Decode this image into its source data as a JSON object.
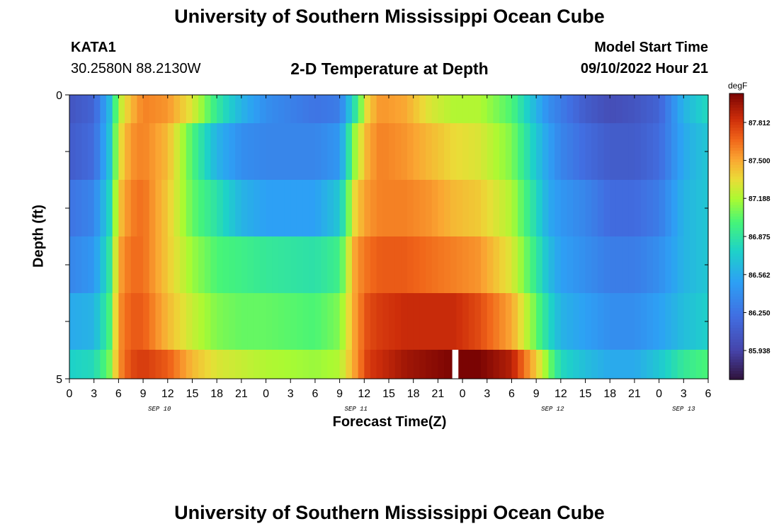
{
  "page": {
    "title": "University of Southern Mississippi Ocean Cube",
    "footer_title": "University of Southern Mississippi Ocean Cube"
  },
  "station": {
    "id": "KATA1",
    "coords": "30.2580N  88.2130W"
  },
  "model": {
    "start_label": "Model Start Time",
    "start_value": "09/10/2022 Hour 21"
  },
  "chart_data": {
    "type": "heatmap",
    "title": "2-D Temperature at Depth",
    "xlabel": "Forecast Time(Z)",
    "ylabel": "Depth (ft)",
    "units": "degF",
    "x_range_hours": [
      0,
      78
    ],
    "y_range_ft": [
      0,
      5
    ],
    "y_ticks": [
      "0",
      "5"
    ],
    "x_tick_labels": [
      "0",
      "3",
      "6",
      "9",
      "12",
      "15",
      "18",
      "21",
      "0",
      "3",
      "6",
      "9",
      "12",
      "15",
      "18",
      "21",
      "0",
      "3",
      "6",
      "9",
      "12",
      "15",
      "18",
      "21",
      "0",
      "3",
      "6"
    ],
    "date_labels": [
      {
        "text": "SEP 10",
        "hour": 11
      },
      {
        "text": "SEP 11",
        "hour": 35
      },
      {
        "text": "SEP 12",
        "hour": 59
      },
      {
        "text": "SEP 13",
        "hour": 75
      }
    ],
    "colorbar": {
      "min": 85.7,
      "max": 88.05,
      "labels": [
        "87.812",
        "87.500",
        "87.188",
        "86.875",
        "86.562",
        "86.250",
        "85.938"
      ],
      "label_values": [
        87.812,
        87.5,
        87.188,
        86.875,
        86.562,
        86.25,
        85.938
      ]
    },
    "gap": {
      "start_hour": 46.75,
      "end_hour": 47.5,
      "row": 5
    },
    "anchor_hours": [
      0,
      3,
      5,
      6,
      7.5,
      9,
      12,
      15,
      18,
      21,
      24,
      30,
      33,
      35,
      36.5,
      38,
      41,
      44,
      47,
      50,
      54,
      57,
      58.5,
      60,
      63,
      66,
      69,
      72,
      75,
      78
    ],
    "rows": [
      {
        "depth_ft": "0.0-0.5",
        "anchors": [
          86.05,
          86.15,
          86.65,
          87.2,
          87.45,
          87.6,
          87.55,
          87.3,
          86.9,
          86.6,
          86.4,
          86.25,
          86.3,
          86.9,
          87.4,
          87.55,
          87.5,
          87.3,
          87.2,
          87.2,
          87.0,
          86.6,
          86.4,
          86.3,
          86.1,
          86.0,
          86.05,
          86.15,
          86.6,
          86.8
        ]
      },
      {
        "depth_ft": "0.5-1.5",
        "anchors": [
          86.1,
          86.2,
          86.7,
          87.3,
          87.55,
          87.6,
          87.45,
          87.0,
          86.6,
          86.4,
          86.35,
          86.35,
          86.45,
          87.2,
          87.5,
          87.6,
          87.55,
          87.45,
          87.35,
          87.3,
          87.1,
          86.7,
          86.5,
          86.35,
          86.2,
          86.1,
          86.1,
          86.2,
          86.55,
          86.7
        ]
      },
      {
        "depth_ft": "1.5-2.5",
        "anchors": [
          86.25,
          86.35,
          86.8,
          87.4,
          87.6,
          87.65,
          87.4,
          87.05,
          86.85,
          86.6,
          86.5,
          86.5,
          86.7,
          87.4,
          87.55,
          87.6,
          87.6,
          87.55,
          87.45,
          87.4,
          87.2,
          86.8,
          86.55,
          86.45,
          86.35,
          86.2,
          86.2,
          86.3,
          86.6,
          86.7
        ]
      },
      {
        "depth_ft": "2.5-3.5",
        "anchors": [
          86.35,
          86.45,
          86.9,
          87.5,
          87.65,
          87.65,
          87.4,
          87.15,
          87.0,
          86.95,
          86.9,
          86.85,
          86.95,
          87.55,
          87.65,
          87.7,
          87.7,
          87.65,
          87.6,
          87.55,
          87.3,
          86.9,
          86.65,
          86.5,
          86.4,
          86.3,
          86.3,
          86.4,
          86.6,
          86.7
        ]
      },
      {
        "depth_ft": "3.5-4.5",
        "anchors": [
          86.55,
          86.6,
          87.0,
          87.55,
          87.7,
          87.7,
          87.45,
          87.25,
          87.1,
          87.05,
          87.05,
          87.0,
          87.1,
          87.55,
          87.75,
          87.8,
          87.85,
          87.85,
          87.85,
          87.75,
          87.5,
          87.05,
          86.8,
          86.6,
          86.5,
          86.4,
          86.4,
          86.5,
          86.65,
          86.75
        ]
      },
      {
        "depth_ft": "4.5-5.0",
        "anchors": [
          86.75,
          86.8,
          87.1,
          87.55,
          87.75,
          87.8,
          87.7,
          87.45,
          87.3,
          87.25,
          87.2,
          87.15,
          87.2,
          87.55,
          87.8,
          87.85,
          87.95,
          88.0,
          88.05,
          88.05,
          87.9,
          87.4,
          87.1,
          86.8,
          86.65,
          86.55,
          86.55,
          86.7,
          86.9,
          87.0
        ]
      }
    ]
  }
}
